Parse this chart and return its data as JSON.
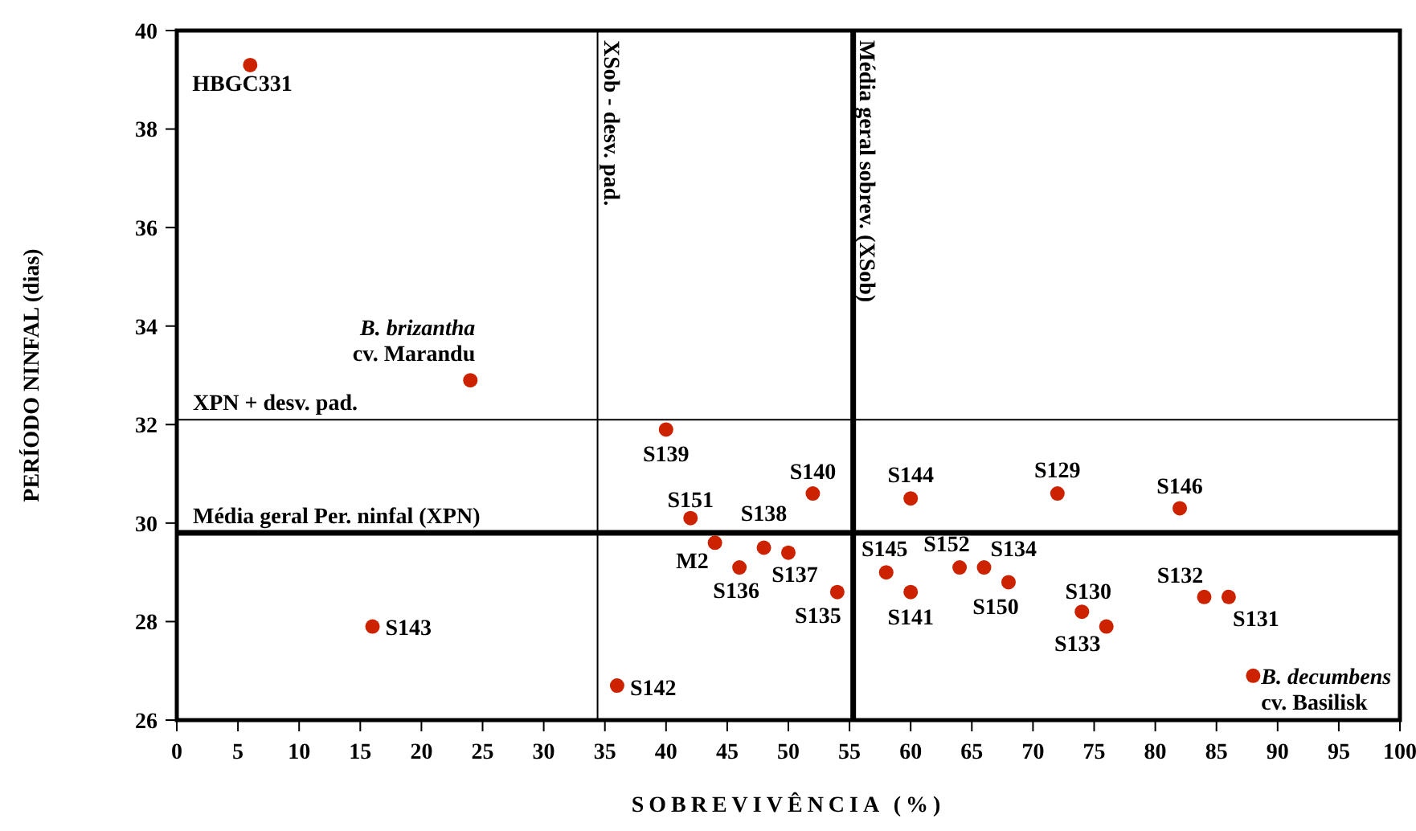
{
  "chart_data": {
    "type": "scatter",
    "xlabel": "SOBREVIVÊNCIA (%)",
    "ylabel": "PERÍODO NINFAL (dias)",
    "xlim": [
      0,
      100
    ],
    "xticks": [
      0,
      5,
      10,
      15,
      20,
      25,
      30,
      35,
      40,
      45,
      50,
      55,
      60,
      65,
      70,
      75,
      80,
      85,
      90,
      95,
      100
    ],
    "ylim": [
      26,
      40
    ],
    "yticks": [
      26,
      28,
      30,
      32,
      34,
      36,
      38,
      40
    ],
    "grid": false,
    "marker": "circle",
    "series": [
      {
        "color": "#cc2200",
        "x": [
          6,
          24,
          40,
          42,
          52,
          44,
          48,
          50,
          46,
          54,
          36,
          16,
          60,
          58,
          60,
          64,
          66,
          68,
          72,
          82,
          74,
          76,
          84,
          86,
          88
        ],
        "values": [
          39.3,
          32.9,
          31.9,
          30.1,
          30.6,
          29.6,
          29.5,
          29.4,
          29.1,
          28.6,
          26.7,
          27.9,
          30.5,
          29.0,
          28.6,
          29.1,
          29.1,
          28.8,
          30.6,
          30.3,
          28.2,
          27.9,
          28.5,
          28.5,
          26.9
        ]
      }
    ],
    "ref_lines": [
      {
        "axis": "x",
        "value": 34.4,
        "label": "XSob - desv. pad.",
        "color": "#000000"
      },
      {
        "axis": "x",
        "value": 55.3,
        "label": "Média geral sobrev. (XSob)",
        "color": "#000000"
      },
      {
        "axis": "y",
        "value": 32.1,
        "label": "XPN + desv. pad.",
        "color": "#000000"
      },
      {
        "axis": "y",
        "value": 29.8,
        "label": "Média geral Per. ninfal (XPN)",
        "color": "#000000"
      }
    ],
    "annotations": [
      {
        "text": "HBGC331",
        "x": 6,
        "y": 39.3
      },
      {
        "text": "B. brizantha\ncv. Marandu",
        "x": 24,
        "y": 32.9
      },
      {
        "text": "S139",
        "x": 40,
        "y": 31.9
      },
      {
        "text": "S151",
        "x": 42,
        "y": 30.1
      },
      {
        "text": "S140",
        "x": 52,
        "y": 30.6
      },
      {
        "text": "M2",
        "x": 44,
        "y": 29.6
      },
      {
        "text": "S138",
        "x": 48,
        "y": 29.5
      },
      {
        "text": "S137",
        "x": 50,
        "y": 29.4
      },
      {
        "text": "S136",
        "x": 46,
        "y": 29.1
      },
      {
        "text": "S135",
        "x": 54,
        "y": 28.6
      },
      {
        "text": "S142",
        "x": 36,
        "y": 26.7
      },
      {
        "text": "S143",
        "x": 16,
        "y": 27.9
      },
      {
        "text": "S144",
        "x": 60,
        "y": 30.5
      },
      {
        "text": "S145",
        "x": 58,
        "y": 29.0
      },
      {
        "text": "S141",
        "x": 60,
        "y": 28.6
      },
      {
        "text": "S152",
        "x": 64,
        "y": 29.1
      },
      {
        "text": "S134",
        "x": 66,
        "y": 29.1
      },
      {
        "text": "S150",
        "x": 68,
        "y": 28.8
      },
      {
        "text": "S129",
        "x": 72,
        "y": 30.6
      },
      {
        "text": "S146",
        "x": 82,
        "y": 30.3
      },
      {
        "text": "S130",
        "x": 74,
        "y": 28.2
      },
      {
        "text": "S133",
        "x": 76,
        "y": 27.9
      },
      {
        "text": "S132",
        "x": 84,
        "y": 28.5
      },
      {
        "text": "S131",
        "x": 86,
        "y": 28.5
      },
      {
        "text": "B. decumbens\ncv. Basilisk",
        "x": 88,
        "y": 26.9
      }
    ]
  }
}
